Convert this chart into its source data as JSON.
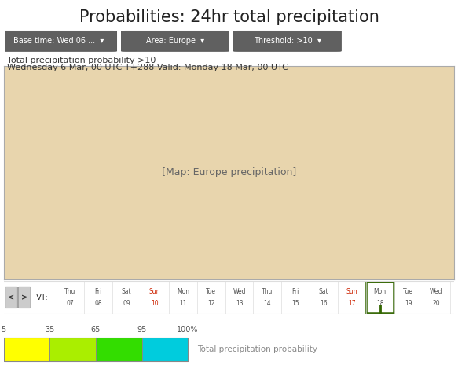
{
  "title": "Probabilities: 24hr total precipitation",
  "title_fontsize": 15,
  "title_color": "#222222",
  "bg_color": "#ffffff",
  "dropdown_bg": "#606060",
  "dropdown_texts": [
    "Base time: Wed 06 ...  ▾",
    "Area: Europe  ▾",
    "Threshold: >10  ▾"
  ],
  "dropdown_text_color": "#ffffff",
  "subtitle1": "Total precipitation probability >10",
  "subtitle2": "Wednesday 6 Mar, 00 UTC T+288 Valid: Monday 18 Mar, 00 UTC",
  "subtitle_fontsize": 8,
  "subtitle_color": "#333333",
  "map_land_color": "#e8d5ad",
  "map_ocean_color": "#ffffff",
  "map_border_color": "#aaaaaa",
  "map_grid_color": "#cccccc",
  "yellow_color": "#ffff00",
  "green_color": "#44cc00",
  "teal_color": "#00ccaa",
  "timeline_bg": "#f8f8f8",
  "timeline_border": "#dddddd",
  "timeline_label": "VT:",
  "timeline_days": [
    "Thu 07",
    "Fri 08",
    "Sat 09",
    "Sun 10",
    "Mon 11",
    "Tue 12",
    "Wed 13",
    "Thu 14",
    "Fri 15",
    "Sat 16",
    "Sun 17",
    "Mon 18",
    "Tue 19",
    "Wed 20"
  ],
  "timeline_text_color": "#555555",
  "timeline_sun_color": "#cc2200",
  "timeline_current_day": "Mon 18",
  "timeline_current_bg": "#ffffff",
  "timeline_current_border": "#336600",
  "legend_labels": [
    "5",
    "35",
    "65",
    "95",
    "100%"
  ],
  "legend_colors": [
    "#ffff00",
    "#aaee00",
    "#33dd00",
    "#00ccdd"
  ],
  "legend_text": "Total precipitation probability",
  "legend_text_color": "#888888",
  "legend_label_color": "#555555",
  "nav_bg": "#cccccc",
  "nav_border": "#999999"
}
